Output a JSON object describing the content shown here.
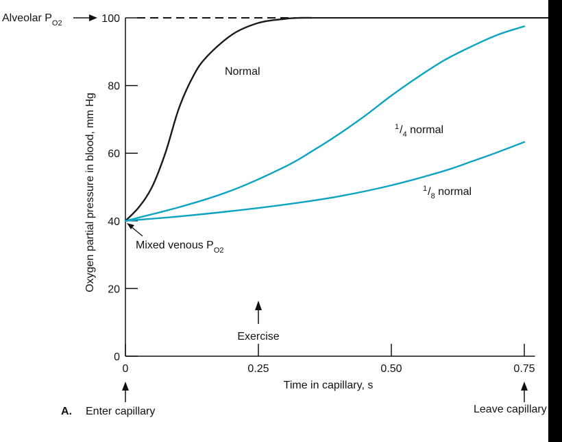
{
  "chart_data": {
    "type": "line",
    "xlabel": "Time in capillary, s",
    "ylabel": "Oxygen partial pressure in blood, mm Hg",
    "xlim": [
      0,
      0.77
    ],
    "ylim": [
      0,
      100
    ],
    "x_ticks": [
      "0",
      "0.25",
      "0.50",
      "0.75"
    ],
    "x_tick_values": [
      0,
      0.25,
      0.5,
      0.75
    ],
    "y_ticks": [
      "0",
      "20",
      "40",
      "60",
      "80",
      "100"
    ],
    "y_tick_values": [
      0,
      20,
      40,
      60,
      80,
      100
    ],
    "grid": false,
    "alveolar_level": 100,
    "colors": {
      "normal": "#1a1a1a",
      "reduced": "#0aa3c2",
      "axis": "#111111",
      "background": "#ffffff"
    },
    "series": [
      {
        "name": "Normal",
        "color": "#1a1a1a",
        "x": [
          0,
          0.025,
          0.05,
          0.075,
          0.1,
          0.125,
          0.15,
          0.2,
          0.25,
          0.3,
          0.33,
          0.35
        ],
        "y": [
          40,
          44,
          50,
          60,
          73,
          82,
          88,
          95,
          98.5,
          99.7,
          100,
          100
        ]
      },
      {
        "name": "1/4 normal",
        "color": "#0aa3c2",
        "x": [
          0,
          0.1,
          0.2,
          0.3,
          0.35,
          0.4,
          0.45,
          0.5,
          0.55,
          0.6,
          0.65,
          0.7,
          0.75
        ],
        "y": [
          40,
          44,
          49,
          56,
          60.5,
          65.5,
          71,
          77,
          82.5,
          87.5,
          91.5,
          95,
          97.5
        ]
      },
      {
        "name": "1/8 normal",
        "color": "#0aa3c2",
        "x": [
          0,
          0.1,
          0.2,
          0.3,
          0.4,
          0.5,
          0.6,
          0.65,
          0.7,
          0.75
        ],
        "y": [
          40,
          41.3,
          42.9,
          44.8,
          47.2,
          50.5,
          54.8,
          57.5,
          60.3,
          63.3
        ]
      }
    ],
    "annotations": {
      "alveolar_label": "Alveolar P",
      "alveolar_sub": "O2",
      "mixed_venous_label": "Mixed venous P",
      "mixed_venous_sub": "O2",
      "normal_label": "Normal",
      "quarter_num": "1",
      "quarter_den": "4",
      "quarter_text": " normal",
      "eighth_num": "1",
      "eighth_den": "8",
      "eighth_text": " normal",
      "exercise": "Exercise",
      "exercise_x": 0.25,
      "panel_letter": "A.",
      "enter": "Enter capillary",
      "leave": "Leave capillary",
      "leave_x": 0.75
    }
  }
}
